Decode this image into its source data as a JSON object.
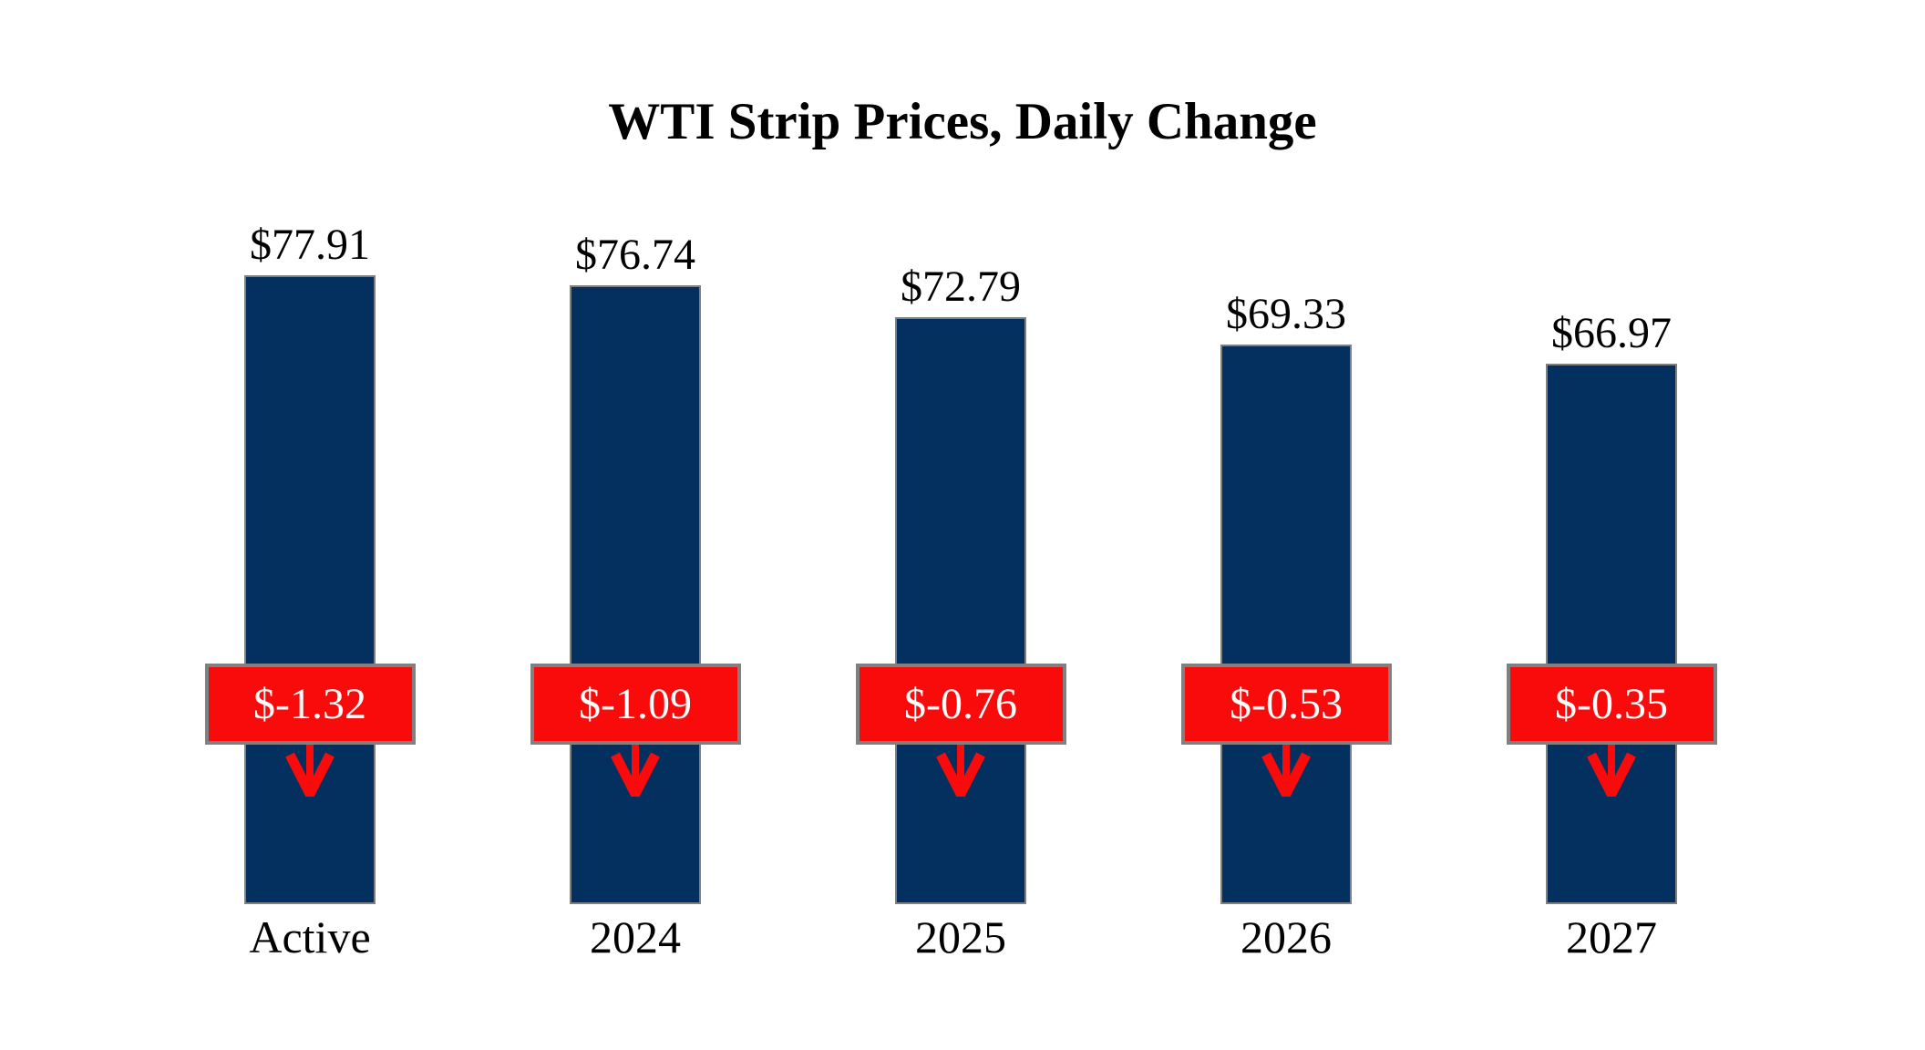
{
  "page": {
    "background": "#FFFFFF"
  },
  "chart_data": {
    "type": "bar",
    "title": "WTI Strip Prices, Daily Change",
    "categories": [
      "Active",
      "2024",
      "2025",
      "2026",
      "2027"
    ],
    "series": [
      {
        "name": "WTI Strip Price",
        "values": [
          77.91,
          76.74,
          72.79,
          69.33,
          66.97
        ],
        "labels": [
          "$77.91",
          "$76.74",
          "$72.79",
          "$69.33",
          "$66.97"
        ]
      },
      {
        "name": "Daily Change",
        "values": [
          -1.32,
          -1.09,
          -0.76,
          -0.53,
          -0.35
        ],
        "labels": [
          "$-1.32",
          "$-1.09",
          "$-0.76",
          "$-0.53",
          "$-0.35"
        ]
      }
    ],
    "ylim": [
      0,
      80
    ],
    "grid": false,
    "legend": null,
    "axes_visible": false,
    "annotations": "red badge with white daily-change value and red down arrow centered on each bar",
    "colors": {
      "bar_fill": "#03305E",
      "bar_border": "#808080",
      "badge_fill": "#F90B0B",
      "badge_border": "#808080",
      "badge_text": "#FFFFFF",
      "arrow": "#F90B0B",
      "text": "#000000"
    }
  }
}
